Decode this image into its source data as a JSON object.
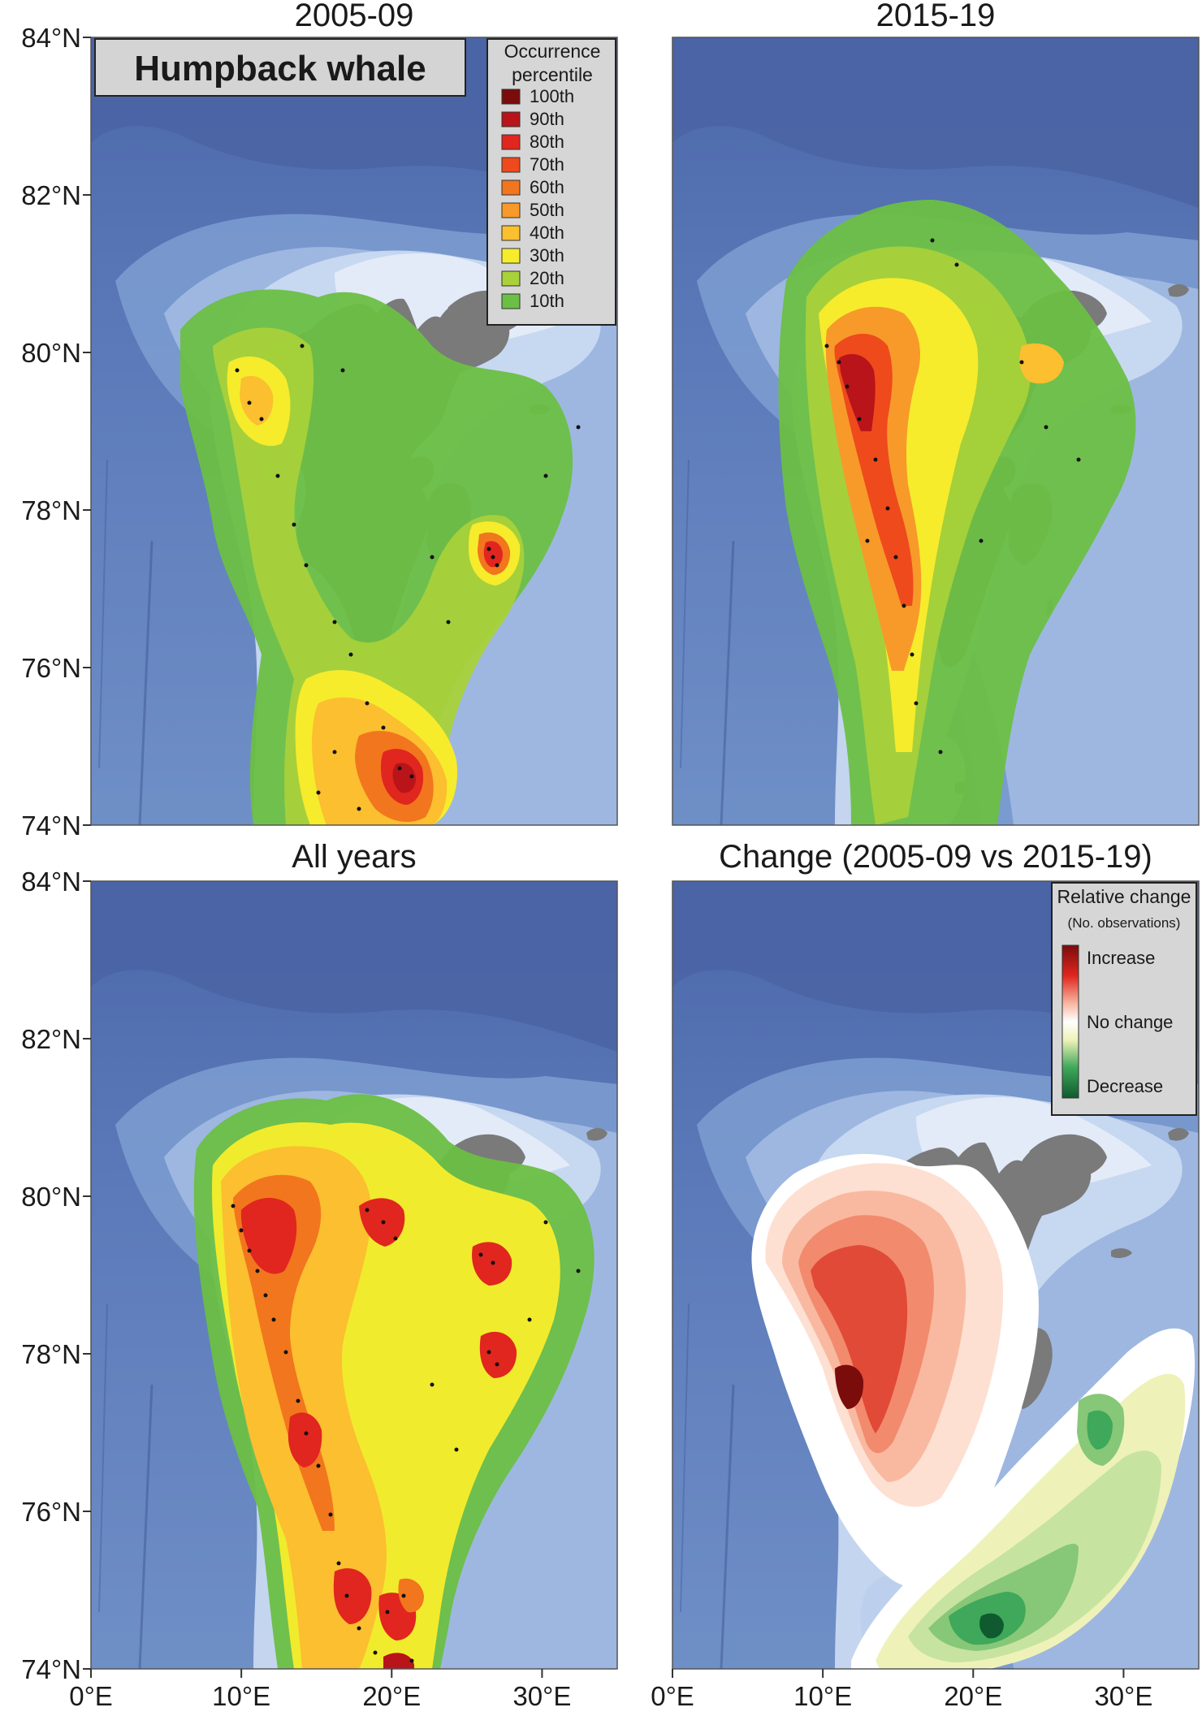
{
  "species_label": "Humpback whale",
  "panels": [
    {
      "id": "p1",
      "title": "2005-09"
    },
    {
      "id": "p2",
      "title": "2015-19"
    },
    {
      "id": "p3",
      "title": "All years"
    },
    {
      "id": "p4",
      "title": "Change (2005-09 vs 2015-19)"
    }
  ],
  "axes": {
    "lat_ticks": [
      "84°N",
      "82°N",
      "80°N",
      "78°N",
      "76°N",
      "74°N"
    ],
    "lon_ticks": [
      "0°E",
      "10°E",
      "20°E",
      "30°E"
    ]
  },
  "occurrence_legend": {
    "title_line1": "Occurrence",
    "title_line2": "percentile",
    "items": [
      {
        "label": "100th",
        "color": "#7a0c0c"
      },
      {
        "label": "90th",
        "color": "#b8141a"
      },
      {
        "label": "80th",
        "color": "#e0261e"
      },
      {
        "label": "70th",
        "color": "#ee4a1c"
      },
      {
        "label": "60th",
        "color": "#f2761d"
      },
      {
        "label": "50th",
        "color": "#f79a2a"
      },
      {
        "label": "40th",
        "color": "#fbbf30"
      },
      {
        "label": "30th",
        "color": "#f6ec2c"
      },
      {
        "label": "20th",
        "color": "#a8d13a"
      },
      {
        "label": "10th",
        "color": "#6cbf45"
      }
    ]
  },
  "change_legend": {
    "title_line1": "Relative change",
    "title_line2": "(No. observations)",
    "increase_label": "Increase",
    "nochange_label": "No change",
    "decrease_label": "Decrease"
  },
  "colors": {
    "ocean_deep": "#4a66a8",
    "ocean_mid": "#7f9fd2",
    "shelf": "#bcd0ee",
    "shallow": "#dbe6f6",
    "land": "#7a7a7a"
  }
}
